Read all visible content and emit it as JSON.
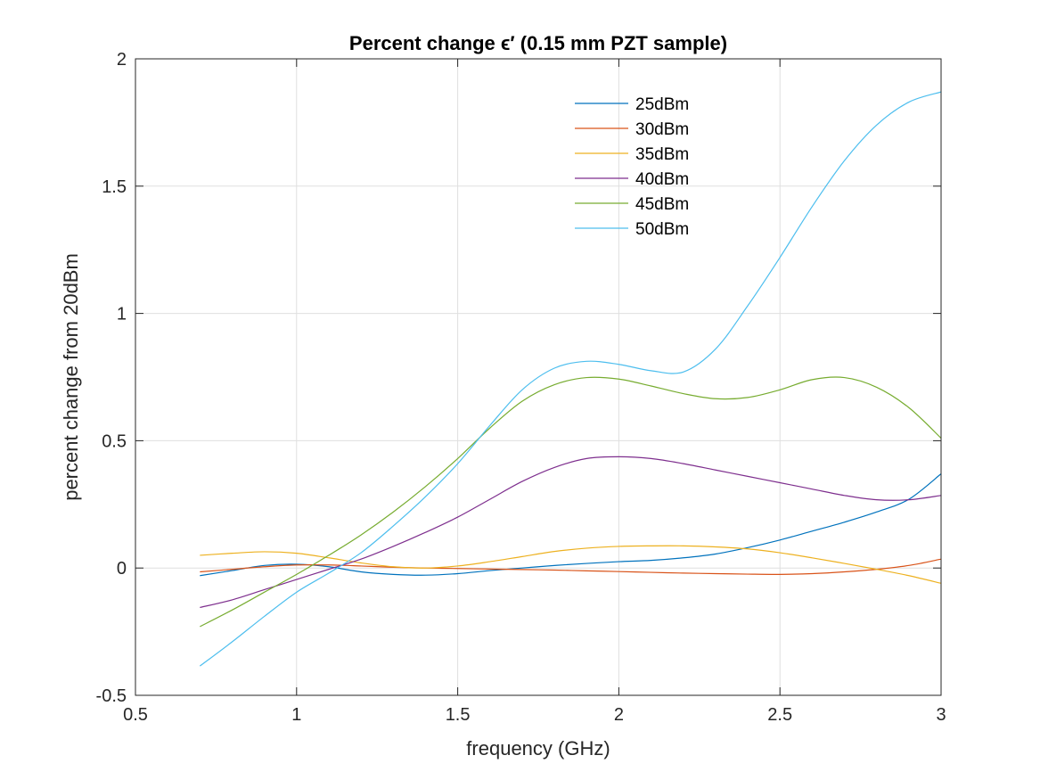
{
  "chart_data": {
    "type": "line",
    "title": "Percent change ϵ′ (0.15 mm PZT sample)",
    "xlabel": "frequency (GHz)",
    "ylabel": "percent change from 20dBm",
    "xlim": [
      0.5,
      3
    ],
    "ylim": [
      -0.5,
      2
    ],
    "xticks": [
      0.5,
      1,
      1.5,
      2,
      2.5,
      3
    ],
    "xtick_labels": [
      "0.5",
      "1",
      "1.5",
      "2",
      "2.5",
      "3"
    ],
    "yticks": [
      -0.5,
      0,
      0.5,
      1,
      1.5,
      2
    ],
    "ytick_labels": [
      "-0.5",
      "0",
      "0.5",
      "1",
      "1.5",
      "2"
    ],
    "grid": true,
    "legend_position": "top-right",
    "x": [
      0.7,
      0.8,
      0.9,
      1.0,
      1.1,
      1.2,
      1.3,
      1.4,
      1.5,
      1.6,
      1.7,
      1.8,
      1.9,
      2.0,
      2.1,
      2.2,
      2.3,
      2.4,
      2.5,
      2.6,
      2.7,
      2.8,
      2.9,
      3.0
    ],
    "series": [
      {
        "name": "25dBm",
        "color": "#0072BD",
        "values": [
          -0.03,
          -0.01,
          0.01,
          0.015,
          0.005,
          -0.015,
          -0.025,
          -0.028,
          -0.022,
          -0.01,
          0.0,
          0.01,
          0.018,
          0.025,
          0.03,
          0.04,
          0.055,
          0.08,
          0.11,
          0.145,
          0.18,
          0.22,
          0.27,
          0.37
        ]
      },
      {
        "name": "30dBm",
        "color": "#D95319",
        "values": [
          -0.015,
          -0.005,
          0.005,
          0.012,
          0.012,
          0.008,
          0.003,
          0.0,
          -0.002,
          -0.004,
          -0.006,
          -0.008,
          -0.011,
          -0.014,
          -0.017,
          -0.02,
          -0.022,
          -0.024,
          -0.025,
          -0.022,
          -0.015,
          -0.005,
          0.01,
          0.035
        ]
      },
      {
        "name": "35dBm",
        "color": "#EDB120",
        "values": [
          0.05,
          0.058,
          0.064,
          0.058,
          0.04,
          0.02,
          0.005,
          0.0,
          0.008,
          0.025,
          0.045,
          0.065,
          0.078,
          0.085,
          0.087,
          0.087,
          0.083,
          0.075,
          0.06,
          0.04,
          0.018,
          -0.005,
          -0.03,
          -0.06
        ]
      },
      {
        "name": "40dBm",
        "color": "#7E2F8E",
        "values": [
          -0.155,
          -0.125,
          -0.085,
          -0.045,
          -0.005,
          0.035,
          0.085,
          0.14,
          0.2,
          0.27,
          0.34,
          0.395,
          0.43,
          0.437,
          0.43,
          0.41,
          0.385,
          0.36,
          0.335,
          0.31,
          0.285,
          0.268,
          0.268,
          0.285
        ]
      },
      {
        "name": "45dBm",
        "color": "#77AC30",
        "values": [
          -0.23,
          -0.165,
          -0.095,
          -0.025,
          0.05,
          0.13,
          0.22,
          0.32,
          0.43,
          0.55,
          0.655,
          0.72,
          0.748,
          0.742,
          0.715,
          0.685,
          0.665,
          0.67,
          0.7,
          0.74,
          0.748,
          0.71,
          0.63,
          0.51
        ]
      },
      {
        "name": "50dBm",
        "color": "#4DBEEE",
        "values": [
          -0.385,
          -0.29,
          -0.19,
          -0.095,
          -0.02,
          0.06,
          0.165,
          0.28,
          0.41,
          0.56,
          0.7,
          0.785,
          0.812,
          0.8,
          0.775,
          0.77,
          0.86,
          1.03,
          1.22,
          1.42,
          1.6,
          1.74,
          1.83,
          1.87
        ]
      }
    ]
  }
}
